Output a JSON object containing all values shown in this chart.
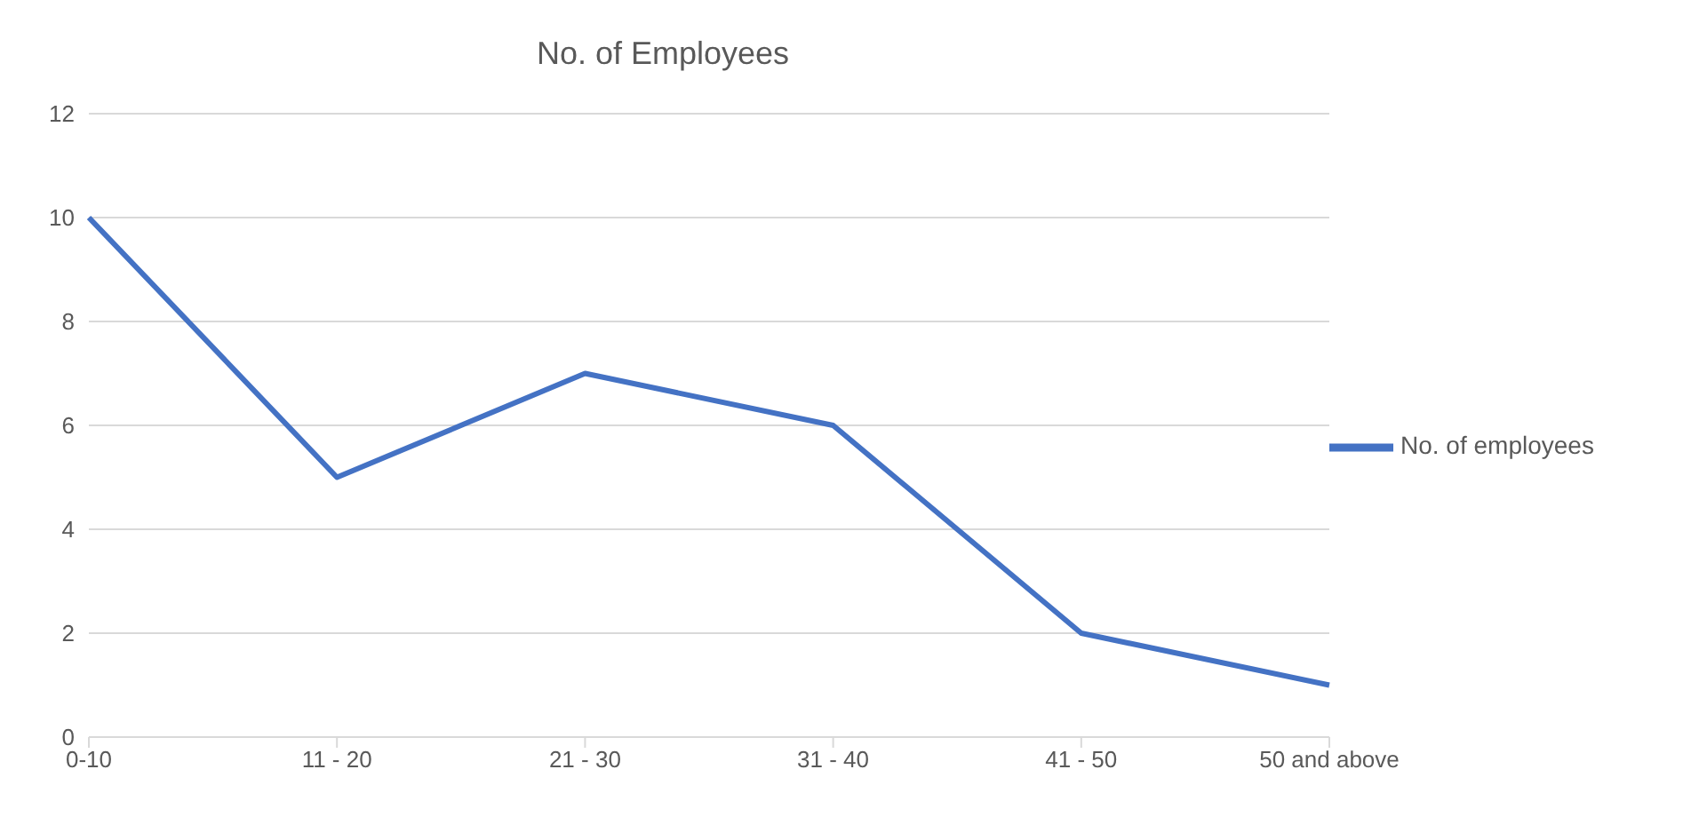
{
  "chart_data": {
    "type": "line",
    "title": "No. of Employees",
    "categories": [
      "0-10",
      "11 - 20",
      "21 - 30",
      "31 - 40",
      "41 - 50",
      "50 and above"
    ],
    "series": [
      {
        "name": "No. of employees",
        "color": "#4472c4",
        "values": [
          10,
          5,
          7,
          6,
          2,
          1
        ]
      }
    ],
    "ylim": [
      0,
      12
    ],
    "yticks": [
      0,
      2,
      4,
      6,
      8,
      10,
      12
    ],
    "grid": "y",
    "legend": "right",
    "marker": "none",
    "line_style": "solid"
  }
}
